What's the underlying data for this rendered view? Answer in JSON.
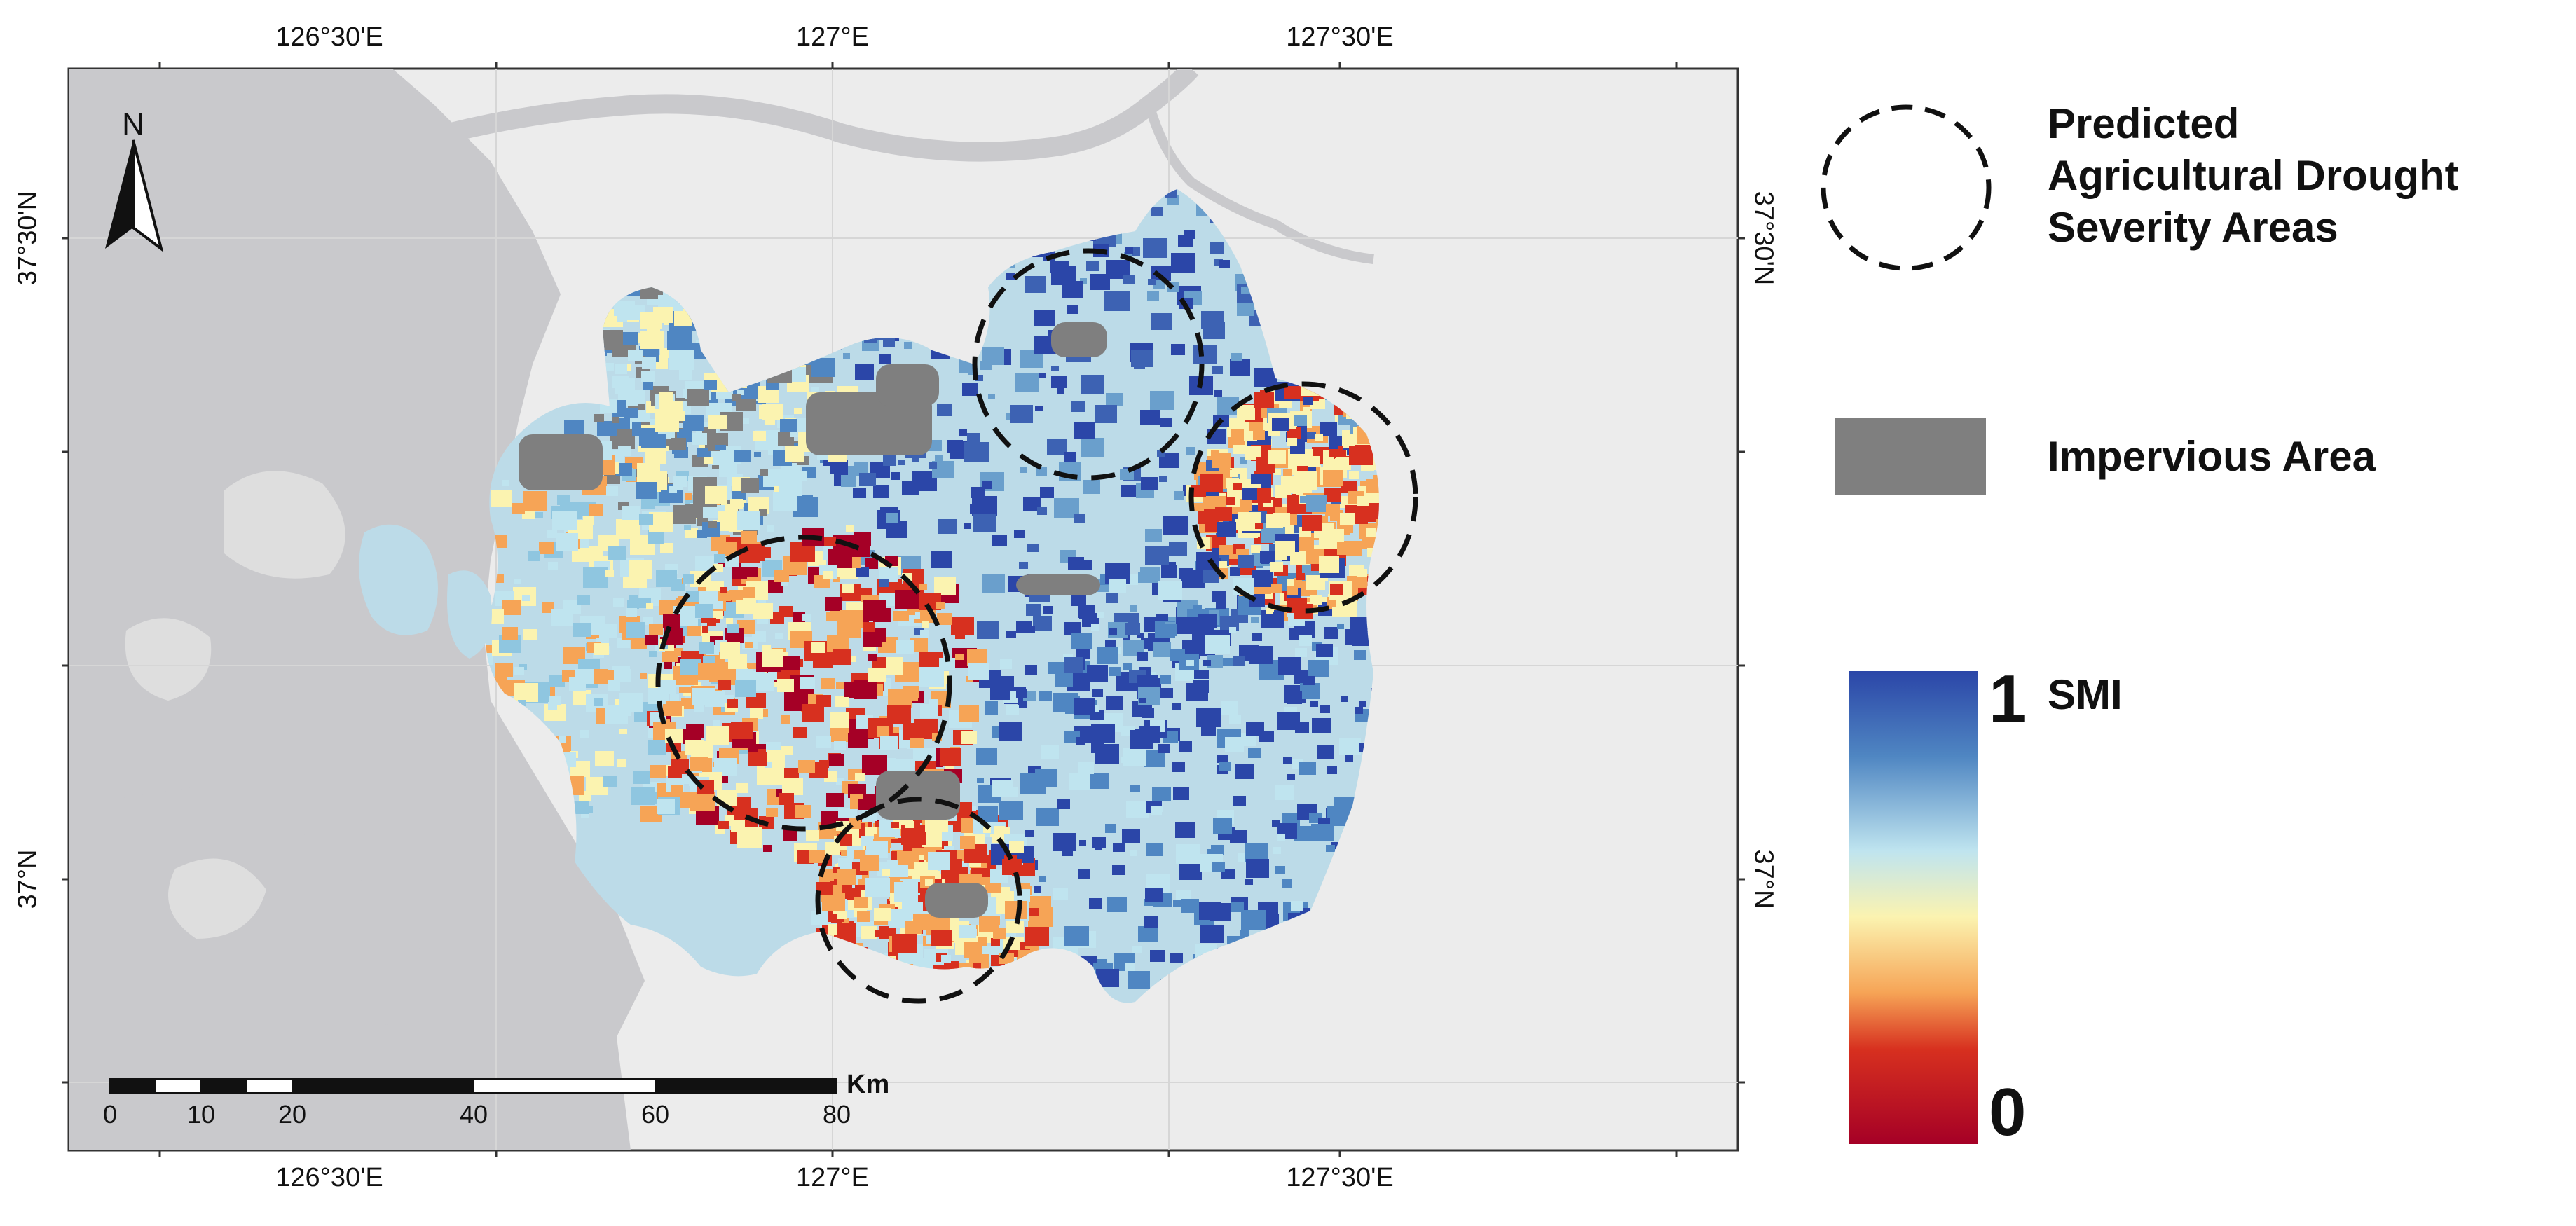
{
  "map": {
    "graticule": {
      "top_labels": [
        "126°30'E",
        "127°E",
        "127°30'E"
      ],
      "bottom_labels": [
        "126°30'E",
        "127°E",
        "127°30'E"
      ],
      "left_labels": [
        "37°30'N",
        "37°N"
      ],
      "right_labels": [
        "37°30'N",
        "37°N"
      ]
    },
    "north_arrow_label": "N",
    "scale_bar": {
      "unit": "Km",
      "ticks": [
        "0",
        "10",
        "20",
        "40",
        "60",
        "80"
      ]
    }
  },
  "legend": {
    "drought_areas_label": "Predicted Agricultural Drought Severity Areas",
    "drought_areas_lines": [
      "Predicted",
      "Agricultural Drought",
      "Severity Areas"
    ],
    "impervious_label": "Impervious Area",
    "smi_label": "SMI",
    "smi_max": "1",
    "smi_min": "0"
  },
  "colors": {
    "smi_high": "#2b46a8",
    "smi_mid_high": "#8fc6e0",
    "smi_mid": "#fbf3b0",
    "smi_mid_low": "#f2843a",
    "smi_low": "#a50026",
    "impervious": "#7f7f7f",
    "background_land": "#ececec",
    "water": "#c9c9cc"
  }
}
